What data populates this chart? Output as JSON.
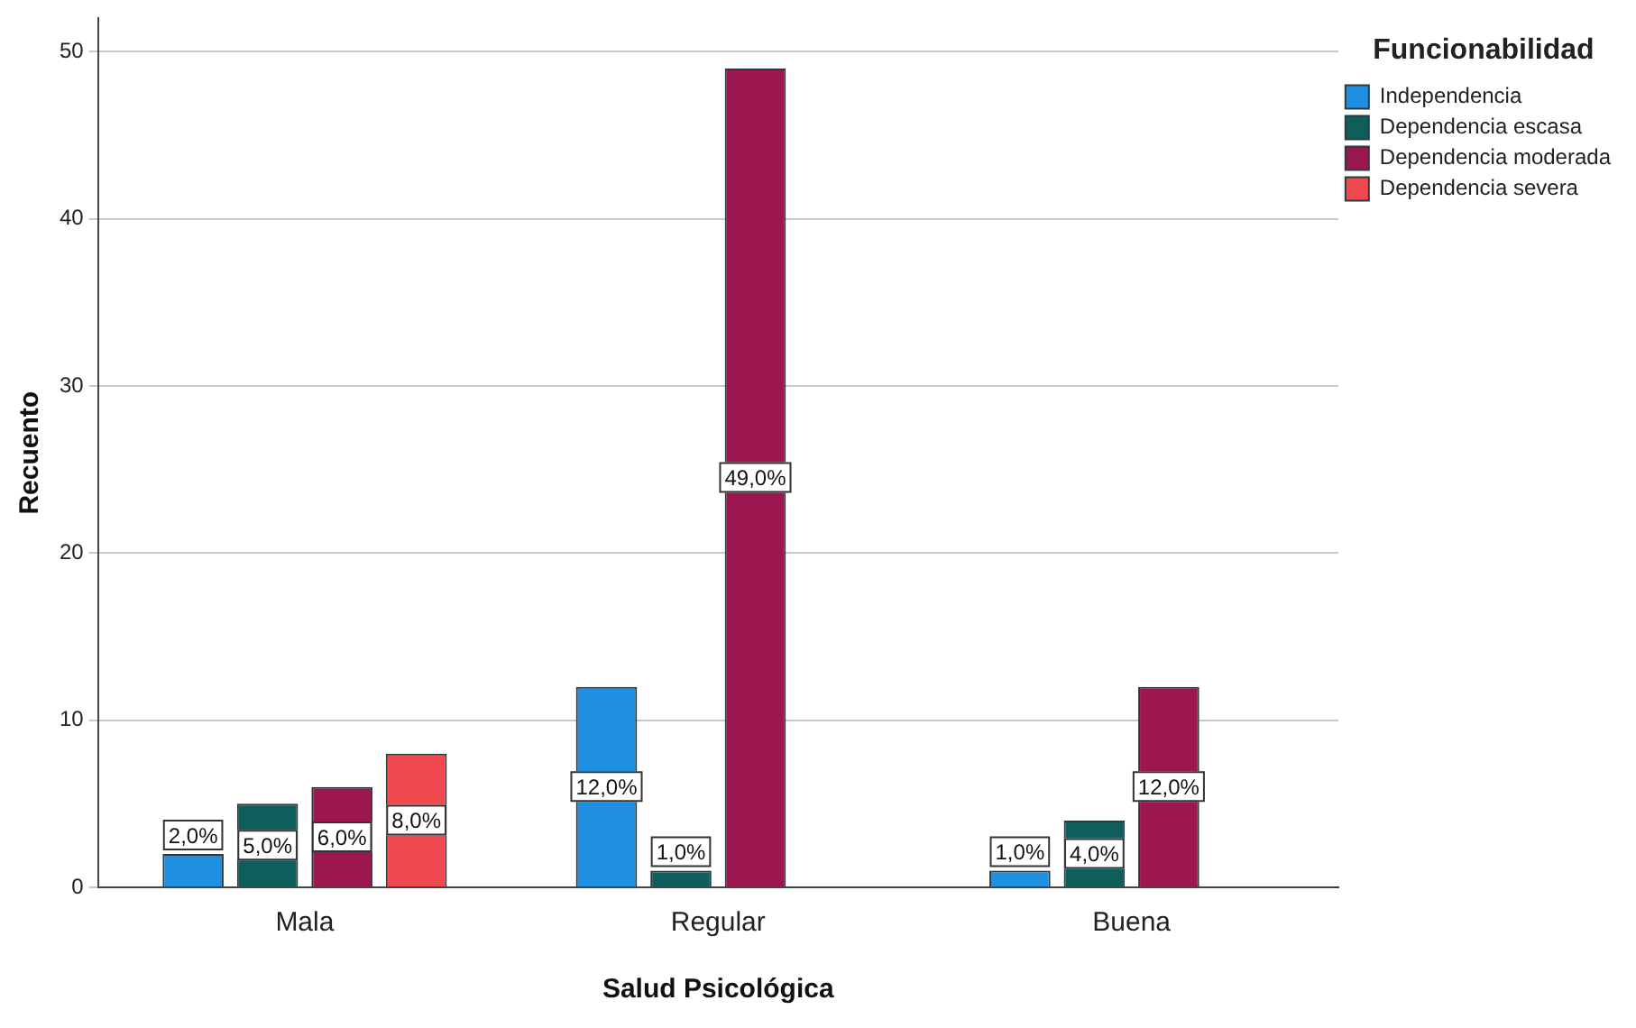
{
  "chart_data": {
    "type": "bar",
    "xlabel": "Salud Psicológica",
    "ylabel": "Recuento",
    "legend_title": "Funcionabilidad",
    "legend": "top right",
    "grid": "y",
    "categories": [
      "Mala",
      "Regular",
      "Buena"
    ],
    "ylim": [
      0,
      52
    ],
    "yticks": [
      0,
      10,
      20,
      30,
      40,
      50
    ],
    "series": [
      {
        "name": "Independencia",
        "color": "#1e8fe1",
        "values": [
          2,
          12,
          1
        ],
        "value_labels": [
          "2,0%",
          "12,0%",
          "1,0%"
        ]
      },
      {
        "name": "Dependencia escasa",
        "color": "#0e5e5b",
        "values": [
          5,
          1,
          4
        ],
        "value_labels": [
          "5,0%",
          "1,0%",
          "4,0%"
        ]
      },
      {
        "name": "Dependencia moderada",
        "color": "#9c174f",
        "values": [
          6,
          49,
          12
        ],
        "value_labels": [
          "6,0%",
          "49,0%",
          "12,0%"
        ]
      },
      {
        "name": "Dependencia severa",
        "color": "#f04a50",
        "values": [
          8,
          null,
          null
        ],
        "value_labels": [
          "8,0%",
          null,
          null
        ]
      }
    ]
  }
}
